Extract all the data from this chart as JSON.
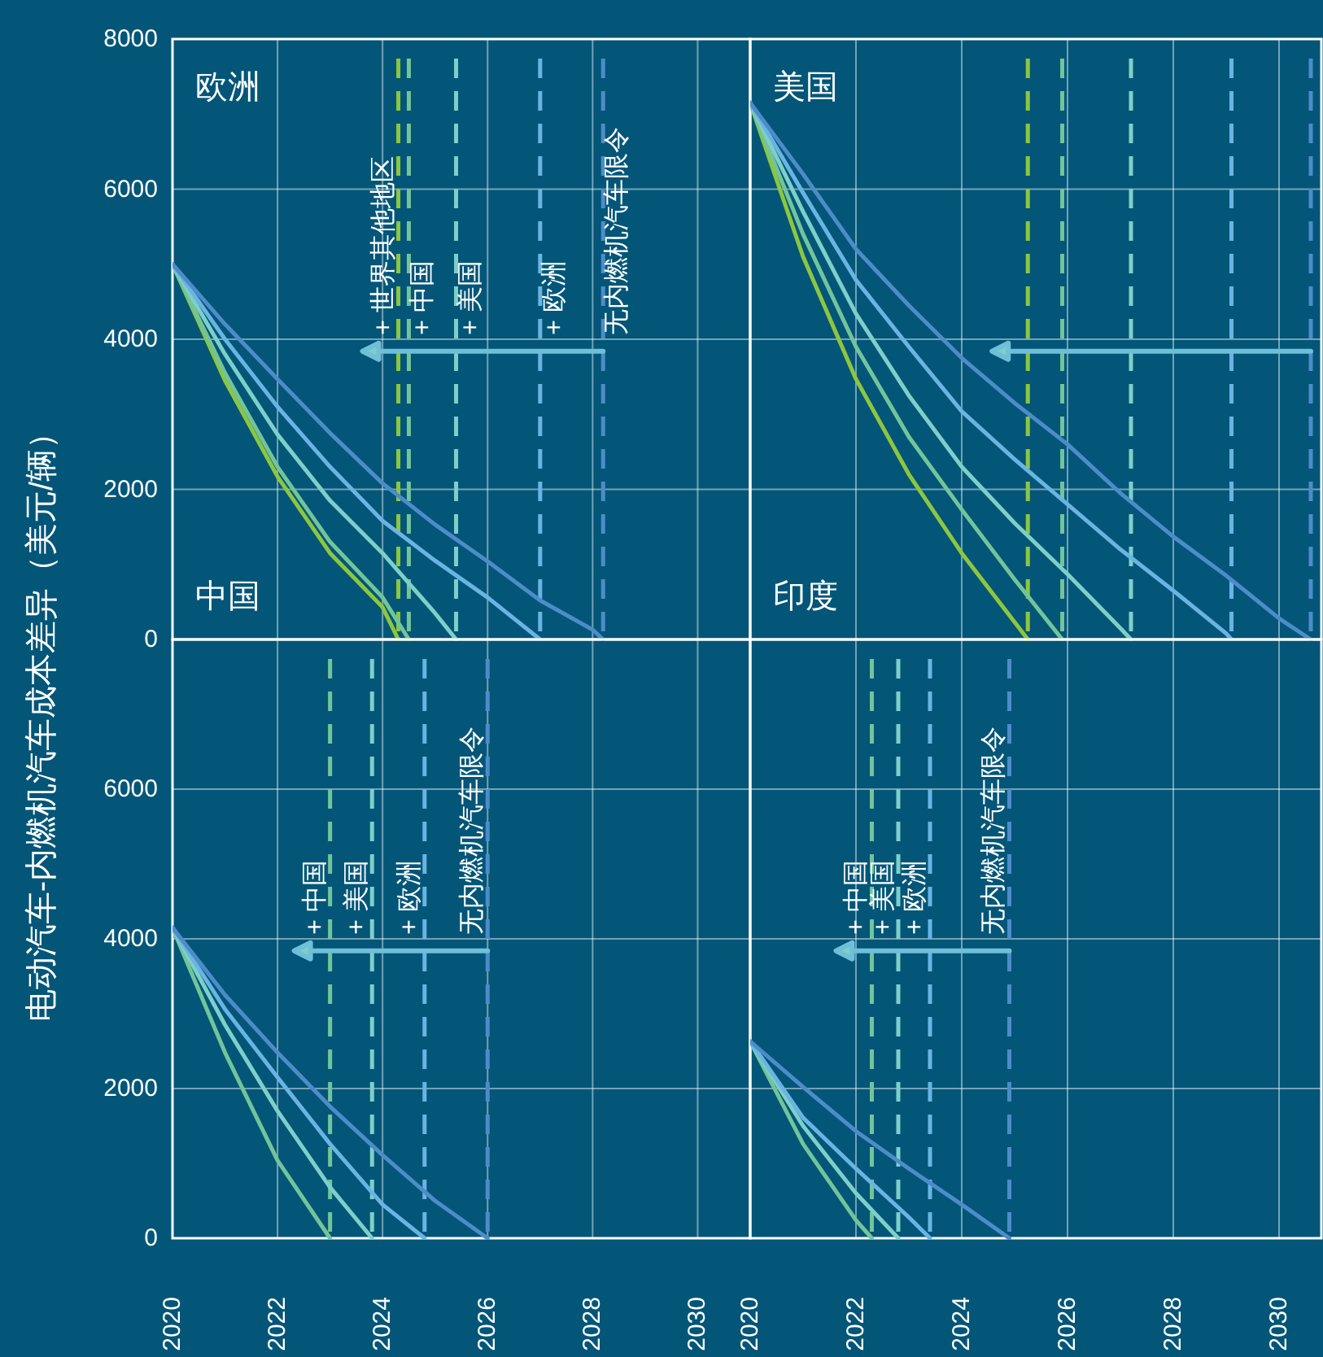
{
  "chart_data": [
    {
      "type": "line",
      "title": "欧洲",
      "xlim": [
        2020,
        2031
      ],
      "xticks": [
        2020,
        2022,
        2024,
        2026,
        2028,
        2030
      ],
      "ylim": [
        0,
        8000
      ],
      "yticks": [
        0,
        2000,
        4000,
        6000,
        8000
      ],
      "grid": true,
      "tick_labels": "y",
      "series": [
        {
          "color": "#8dc63f",
          "x": [
            2020,
            2021,
            2022,
            2023,
            2024,
            2024.3
          ],
          "values": [
            5000,
            3450,
            2170,
            1150,
            430,
            0
          ]
        },
        {
          "color": "#72c49a",
          "x": [
            2020,
            2021,
            2022,
            2023,
            2024,
            2024.5
          ],
          "values": [
            5000,
            3550,
            2300,
            1300,
            560,
            0
          ]
        },
        {
          "color": "#7ecfc8",
          "x": [
            2020,
            2021,
            2022,
            2023,
            2024,
            2025,
            2025.4
          ],
          "values": [
            5000,
            3800,
            2730,
            1850,
            1150,
            350,
            0
          ]
        },
        {
          "color": "#6ab4e4",
          "x": [
            2020,
            2021,
            2022,
            2023,
            2024,
            2025,
            2026,
            2027
          ],
          "values": [
            5000,
            4000,
            3100,
            2300,
            1580,
            1050,
            560,
            0
          ]
        },
        {
          "color": "#4d8cc8",
          "x": [
            2020,
            2021,
            2022,
            2023,
            2024,
            2025,
            2026,
            2027,
            2028,
            2028.2
          ],
          "values": [
            5000,
            4200,
            3470,
            2750,
            2080,
            1530,
            1040,
            520,
            130,
            0
          ]
        }
      ],
      "ref_lines": [
        {
          "axis": "x",
          "value": 2024.3,
          "label": "+ 世界其他地区",
          "color": "#8dc63f",
          "line_style": "dashed"
        },
        {
          "axis": "x",
          "value": 2024.5,
          "label": "+ 中国",
          "color": "#72c49a",
          "line_style": "dashed"
        },
        {
          "axis": "x",
          "value": 2025.4,
          "label": "+ 美国",
          "color": "#7ecfc8",
          "line_style": "dashed"
        },
        {
          "axis": "x",
          "value": 2027.0,
          "label": "+ 欧洲",
          "color": "#6ab4e4",
          "line_style": "dashed"
        },
        {
          "axis": "x",
          "value": 2028.2,
          "label": "无内燃机汽车限令",
          "color": "#4d8cc8",
          "line_style": "dashed"
        }
      ]
    },
    {
      "type": "line",
      "title": "美国",
      "xlim": [
        2020,
        2030.8
      ],
      "xticks": [
        2020,
        2022,
        2024,
        2026,
        2028,
        2030
      ],
      "ylim": [
        0,
        8000
      ],
      "yticks": [
        0,
        2000,
        4000,
        6000,
        8000
      ],
      "grid": true,
      "tick_labels": false,
      "series": [
        {
          "color": "#8dc63f",
          "x": [
            2020,
            2021,
            2022,
            2023,
            2024,
            2025,
            2025.25
          ],
          "values": [
            7150,
            5100,
            3470,
            2200,
            1150,
            230,
            0
          ]
        },
        {
          "color": "#72c49a",
          "x": [
            2020,
            2021,
            2022,
            2023,
            2024,
            2025,
            2025.9
          ],
          "values": [
            7150,
            5400,
            3900,
            2700,
            1730,
            800,
            0
          ]
        },
        {
          "color": "#7ecfc8",
          "x": [
            2020,
            2021,
            2022,
            2023,
            2024,
            2025,
            2026,
            2027,
            2027.2
          ],
          "values": [
            7150,
            5700,
            4340,
            3250,
            2300,
            1550,
            870,
            150,
            0
          ]
        },
        {
          "color": "#6ab4e4",
          "x": [
            2020,
            2021,
            2022,
            2023,
            2024,
            2025,
            2026,
            2027,
            2028,
            2029,
            2029.1
          ],
          "values": [
            7150,
            5950,
            4790,
            3900,
            3040,
            2400,
            1800,
            1200,
            650,
            80,
            0
          ]
        },
        {
          "color": "#4d8cc8",
          "x": [
            2020,
            2021,
            2022,
            2023,
            2024,
            2025,
            2026,
            2027,
            2028,
            2029,
            2030,
            2030.6
          ],
          "values": [
            7150,
            6200,
            5200,
            4450,
            3750,
            3150,
            2600,
            1950,
            1370,
            850,
            280,
            0
          ]
        }
      ],
      "ref_lines": [
        {
          "axis": "x",
          "value": 2025.25,
          "color": "#8dc63f",
          "line_style": "dashed"
        },
        {
          "axis": "x",
          "value": 2025.9,
          "color": "#72c49a",
          "line_style": "dashed"
        },
        {
          "axis": "x",
          "value": 2027.2,
          "color": "#7ecfc8",
          "line_style": "dashed"
        },
        {
          "axis": "x",
          "value": 2029.1,
          "color": "#6ab4e4",
          "line_style": "dashed"
        },
        {
          "axis": "x",
          "value": 2030.6,
          "color": "#4d8cc8",
          "line_style": "dashed"
        }
      ]
    },
    {
      "type": "line",
      "title": "中国",
      "ylabel": "电动汽车-内燃机汽车成本差异（美元/辆）",
      "xlim": [
        2020,
        2031
      ],
      "xticks": [
        2020,
        2022,
        2024,
        2026,
        2028,
        2030
      ],
      "ylim": [
        0,
        8000
      ],
      "yticks": [
        0,
        2000,
        4000,
        6000
      ],
      "grid": true,
      "series": [
        {
          "color": "#72c49a",
          "x": [
            2020,
            2021,
            2022,
            2023
          ],
          "values": [
            4150,
            2480,
            1040,
            0
          ]
        },
        {
          "color": "#7ecfc8",
          "x": [
            2020,
            2021,
            2022,
            2023,
            2023.8
          ],
          "values": [
            4150,
            2850,
            1700,
            680,
            0
          ]
        },
        {
          "color": "#6ab4e4",
          "x": [
            2020,
            2021,
            2022,
            2023,
            2024,
            2024.8
          ],
          "values": [
            4150,
            3060,
            2150,
            1260,
            450,
            0
          ]
        },
        {
          "color": "#4d8cc8",
          "x": [
            2020,
            2021,
            2022,
            2023,
            2024,
            2025,
            2026
          ],
          "values": [
            4150,
            3250,
            2480,
            1760,
            1110,
            500,
            0
          ]
        }
      ],
      "ref_lines": [
        {
          "axis": "x",
          "value": 2023.0,
          "label": "+ 中国",
          "color": "#72c49a",
          "line_style": "dashed"
        },
        {
          "axis": "x",
          "value": 2023.8,
          "label": "+ 美国",
          "color": "#7ecfc8",
          "line_style": "dashed"
        },
        {
          "axis": "x",
          "value": 2024.8,
          "label": "+ 欧洲",
          "color": "#6ab4e4",
          "line_style": "dashed"
        },
        {
          "axis": "x",
          "value": 2026.0,
          "label": "无内燃机汽车限令",
          "color": "#4d8cc8",
          "line_style": "dashed"
        }
      ]
    },
    {
      "type": "line",
      "title": "印度",
      "xlim": [
        2020,
        2030.8
      ],
      "xticks": [
        2020,
        2022,
        2024,
        2026,
        2028,
        2030
      ],
      "ylim": [
        0,
        8000
      ],
      "yticks": [
        0,
        2000,
        4000,
        6000
      ],
      "grid": true,
      "tick_labels": "x",
      "series": [
        {
          "color": "#72c49a",
          "x": [
            2020,
            2021,
            2022,
            2022.3
          ],
          "values": [
            2630,
            1260,
            240,
            0
          ]
        },
        {
          "color": "#7ecfc8",
          "x": [
            2020,
            2021,
            2022,
            2022.8
          ],
          "values": [
            2630,
            1500,
            600,
            0
          ]
        },
        {
          "color": "#6ab4e4",
          "x": [
            2020,
            2021,
            2022,
            2023,
            2023.4
          ],
          "values": [
            2630,
            1610,
            930,
            280,
            0
          ]
        },
        {
          "color": "#4d8cc8",
          "x": [
            2020,
            2021,
            2022,
            2023,
            2024,
            2024.9
          ],
          "values": [
            2630,
            2020,
            1430,
            930,
            450,
            0
          ]
        }
      ],
      "ref_lines": [
        {
          "axis": "x",
          "value": 2022.3,
          "label": "+ 中国",
          "color": "#72c49a",
          "line_style": "dashed"
        },
        {
          "axis": "x",
          "value": 2022.8,
          "label": "+ 美国",
          "color": "#7ecfc8",
          "line_style": "dashed"
        },
        {
          "axis": "x",
          "value": 2023.4,
          "label": "+ 欧洲",
          "color": "#6ab4e4",
          "line_style": "dashed"
        },
        {
          "axis": "x",
          "value": 2024.9,
          "label": "无内燃机汽车限令",
          "color": "#4d8cc8",
          "line_style": "dashed"
        }
      ]
    }
  ]
}
